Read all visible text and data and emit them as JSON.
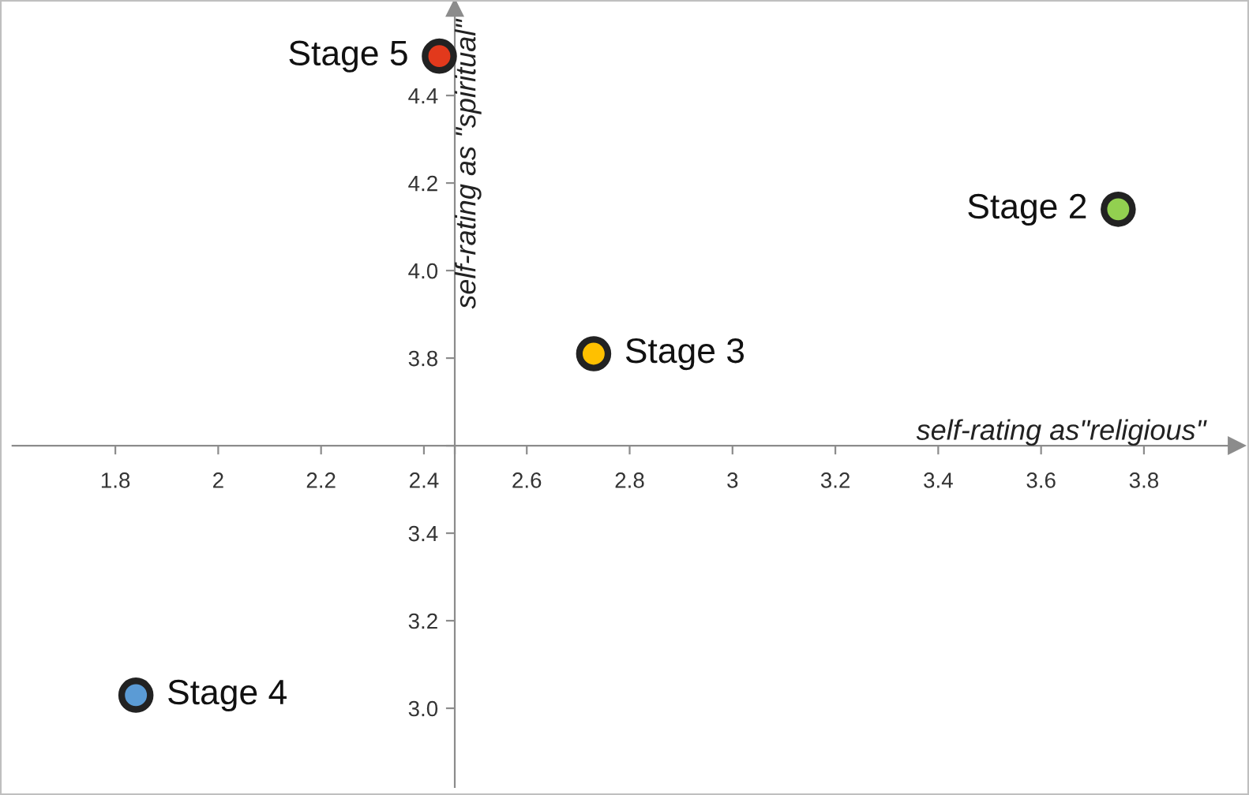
{
  "chart_data": {
    "type": "scatter",
    "xlabel": "self-rating as\"religious\"",
    "ylabel": "self-rating as \"spiritual\"",
    "x": [
      2.43,
      3.75,
      2.73,
      1.84
    ],
    "series": [
      {
        "values": [
          4.49,
          4.14,
          3.81,
          3.03
        ],
        "colors": [
          "#e2391c",
          "#92d050",
          "#ffc000",
          "#5b9bd5"
        ]
      }
    ],
    "marker": "circle",
    "grid": false,
    "legend": false,
    "xlim": [
      1.6,
      3.98
    ],
    "ylim": [
      2.82,
      4.6
    ],
    "xticks": [
      1.8,
      2,
      2.2,
      2.4,
      {
        "value": 2.46,
        "label": null
      },
      2.6,
      2.8,
      3,
      3.2,
      3.4,
      3.6,
      3.8
    ],
    "yticks": [
      {
        "value": 3.0,
        "label": "3.0"
      },
      3.2,
      3.4,
      {
        "value": 3.6,
        "label": null
      },
      3.8,
      {
        "value": 4.0,
        "label": "4.0"
      },
      4.2,
      4.4
    ],
    "annotations": [
      {
        "text": "Stage 5",
        "x": 2.43,
        "y": 4.49
      },
      {
        "text": "Stage 2",
        "x": 3.75,
        "y": 4.14
      },
      {
        "text": "Stage 3",
        "x": 2.73,
        "y": 3.81
      },
      {
        "text": "Stage 4",
        "x": 1.84,
        "y": 3.03
      }
    ]
  }
}
